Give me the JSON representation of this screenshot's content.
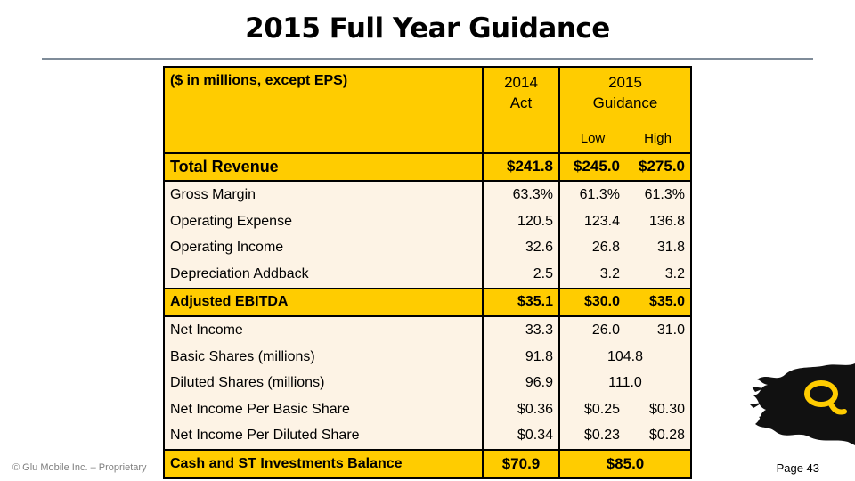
{
  "slide": {
    "title": "2015 Full Year Guidance",
    "footer": "© Glu Mobile Inc. – Proprietary",
    "page": "Page 43"
  },
  "table": {
    "header_label": "($ in millions, except EPS)",
    "col_2014_line1": "2014",
    "col_2014_line2": "Act",
    "col_2015_line1": "2015",
    "col_2015_line2": "Guidance",
    "low": "Low",
    "high": "High",
    "rows": [
      {
        "label": "Total Revenue",
        "act": "$241.8",
        "low": "$245.0",
        "high": "$275.0"
      },
      {
        "label": "Gross Margin",
        "act": "63.3%",
        "low": "61.3%",
        "high": "61.3%"
      },
      {
        "label": "Operating Expense",
        "act": "120.5",
        "low": "123.4",
        "high": "136.8"
      },
      {
        "label": "Operating Income",
        "act": "32.6",
        "low": "26.8",
        "high": "31.8"
      },
      {
        "label": "Depreciation Addback",
        "act": "2.5",
        "low": "3.2",
        "high": "3.2"
      },
      {
        "label": "Adjusted EBITDA",
        "act": "$35.1",
        "low": "$30.0",
        "high": "$35.0"
      },
      {
        "label": "Net Income",
        "act": "33.3",
        "low": "26.0",
        "high": "31.0"
      },
      {
        "label": "Basic Shares (millions)",
        "act": "91.8",
        "guidance": "104.8"
      },
      {
        "label": "Diluted Shares (millions)",
        "act": "96.9",
        "guidance": "111.0"
      },
      {
        "label": "Net Income Per Basic Share",
        "act": "$0.36",
        "low": "$0.25",
        "high": "$0.30"
      },
      {
        "label": "Net Income Per Diluted Share",
        "act": "$0.34",
        "low": "$0.23",
        "high": "$0.28"
      },
      {
        "label": "Cash and ST Investments Balance",
        "act": "$70.9",
        "guidance": "$85.0"
      }
    ]
  },
  "colors": {
    "highlight": "#ffcc00",
    "row_bg": "#fdf3e5",
    "rule": "#7f8c99",
    "logo": "#111111"
  }
}
